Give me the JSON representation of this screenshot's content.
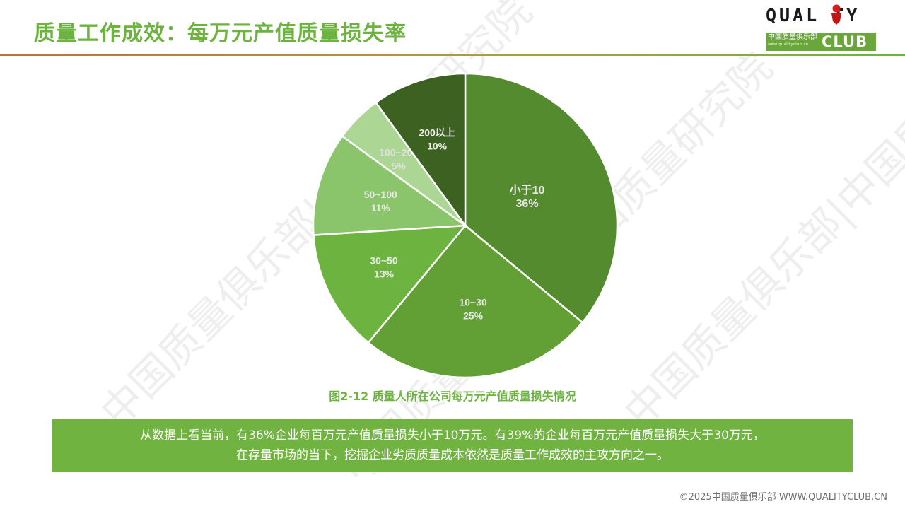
{
  "header": {
    "title": "质量工作成效：每万元产值质量损失率"
  },
  "logo": {
    "text_top": "QUAL TY",
    "text_cn": "中国质量俱乐部",
    "text_url": "www.qualityclub.cn",
    "text_club": "CLUB"
  },
  "chart_data": {
    "type": "pie",
    "title": "图2-12  质量人所在公司每万元产值质量损失情况",
    "start_angle": "12 o'clock, clockwise",
    "categories": [
      "小于10",
      "10~30",
      "30~50",
      "50~100",
      "100~200",
      "200以上"
    ],
    "values": [
      36,
      25,
      13,
      11,
      5,
      10
    ],
    "labels": [
      "36%",
      "25%",
      "13%",
      "11%",
      "5%",
      "10%"
    ],
    "colors": [
      "#548b2e",
      "#62a035",
      "#6db33f",
      "#8bc56b",
      "#acd694",
      "#3c6120"
    ]
  },
  "caption": "图2-12  质量人所在公司每万元产值质量损失情况",
  "summary": {
    "line1": "从数据上看当前，有36%企业每百万元产值质量损失小于10万元。有39%的企业每百万元产值质量损失大于30万元，",
    "line2": "在存量市场的当下，挖掘企业劣质质量成本依然是质量工作成效的主攻方向之一。"
  },
  "footer": {
    "copyright": "©2025中国质量俱乐部 WWW.QUALITYCLUB.CN"
  },
  "watermark": "中国质量俱乐部|中国质量研究院"
}
